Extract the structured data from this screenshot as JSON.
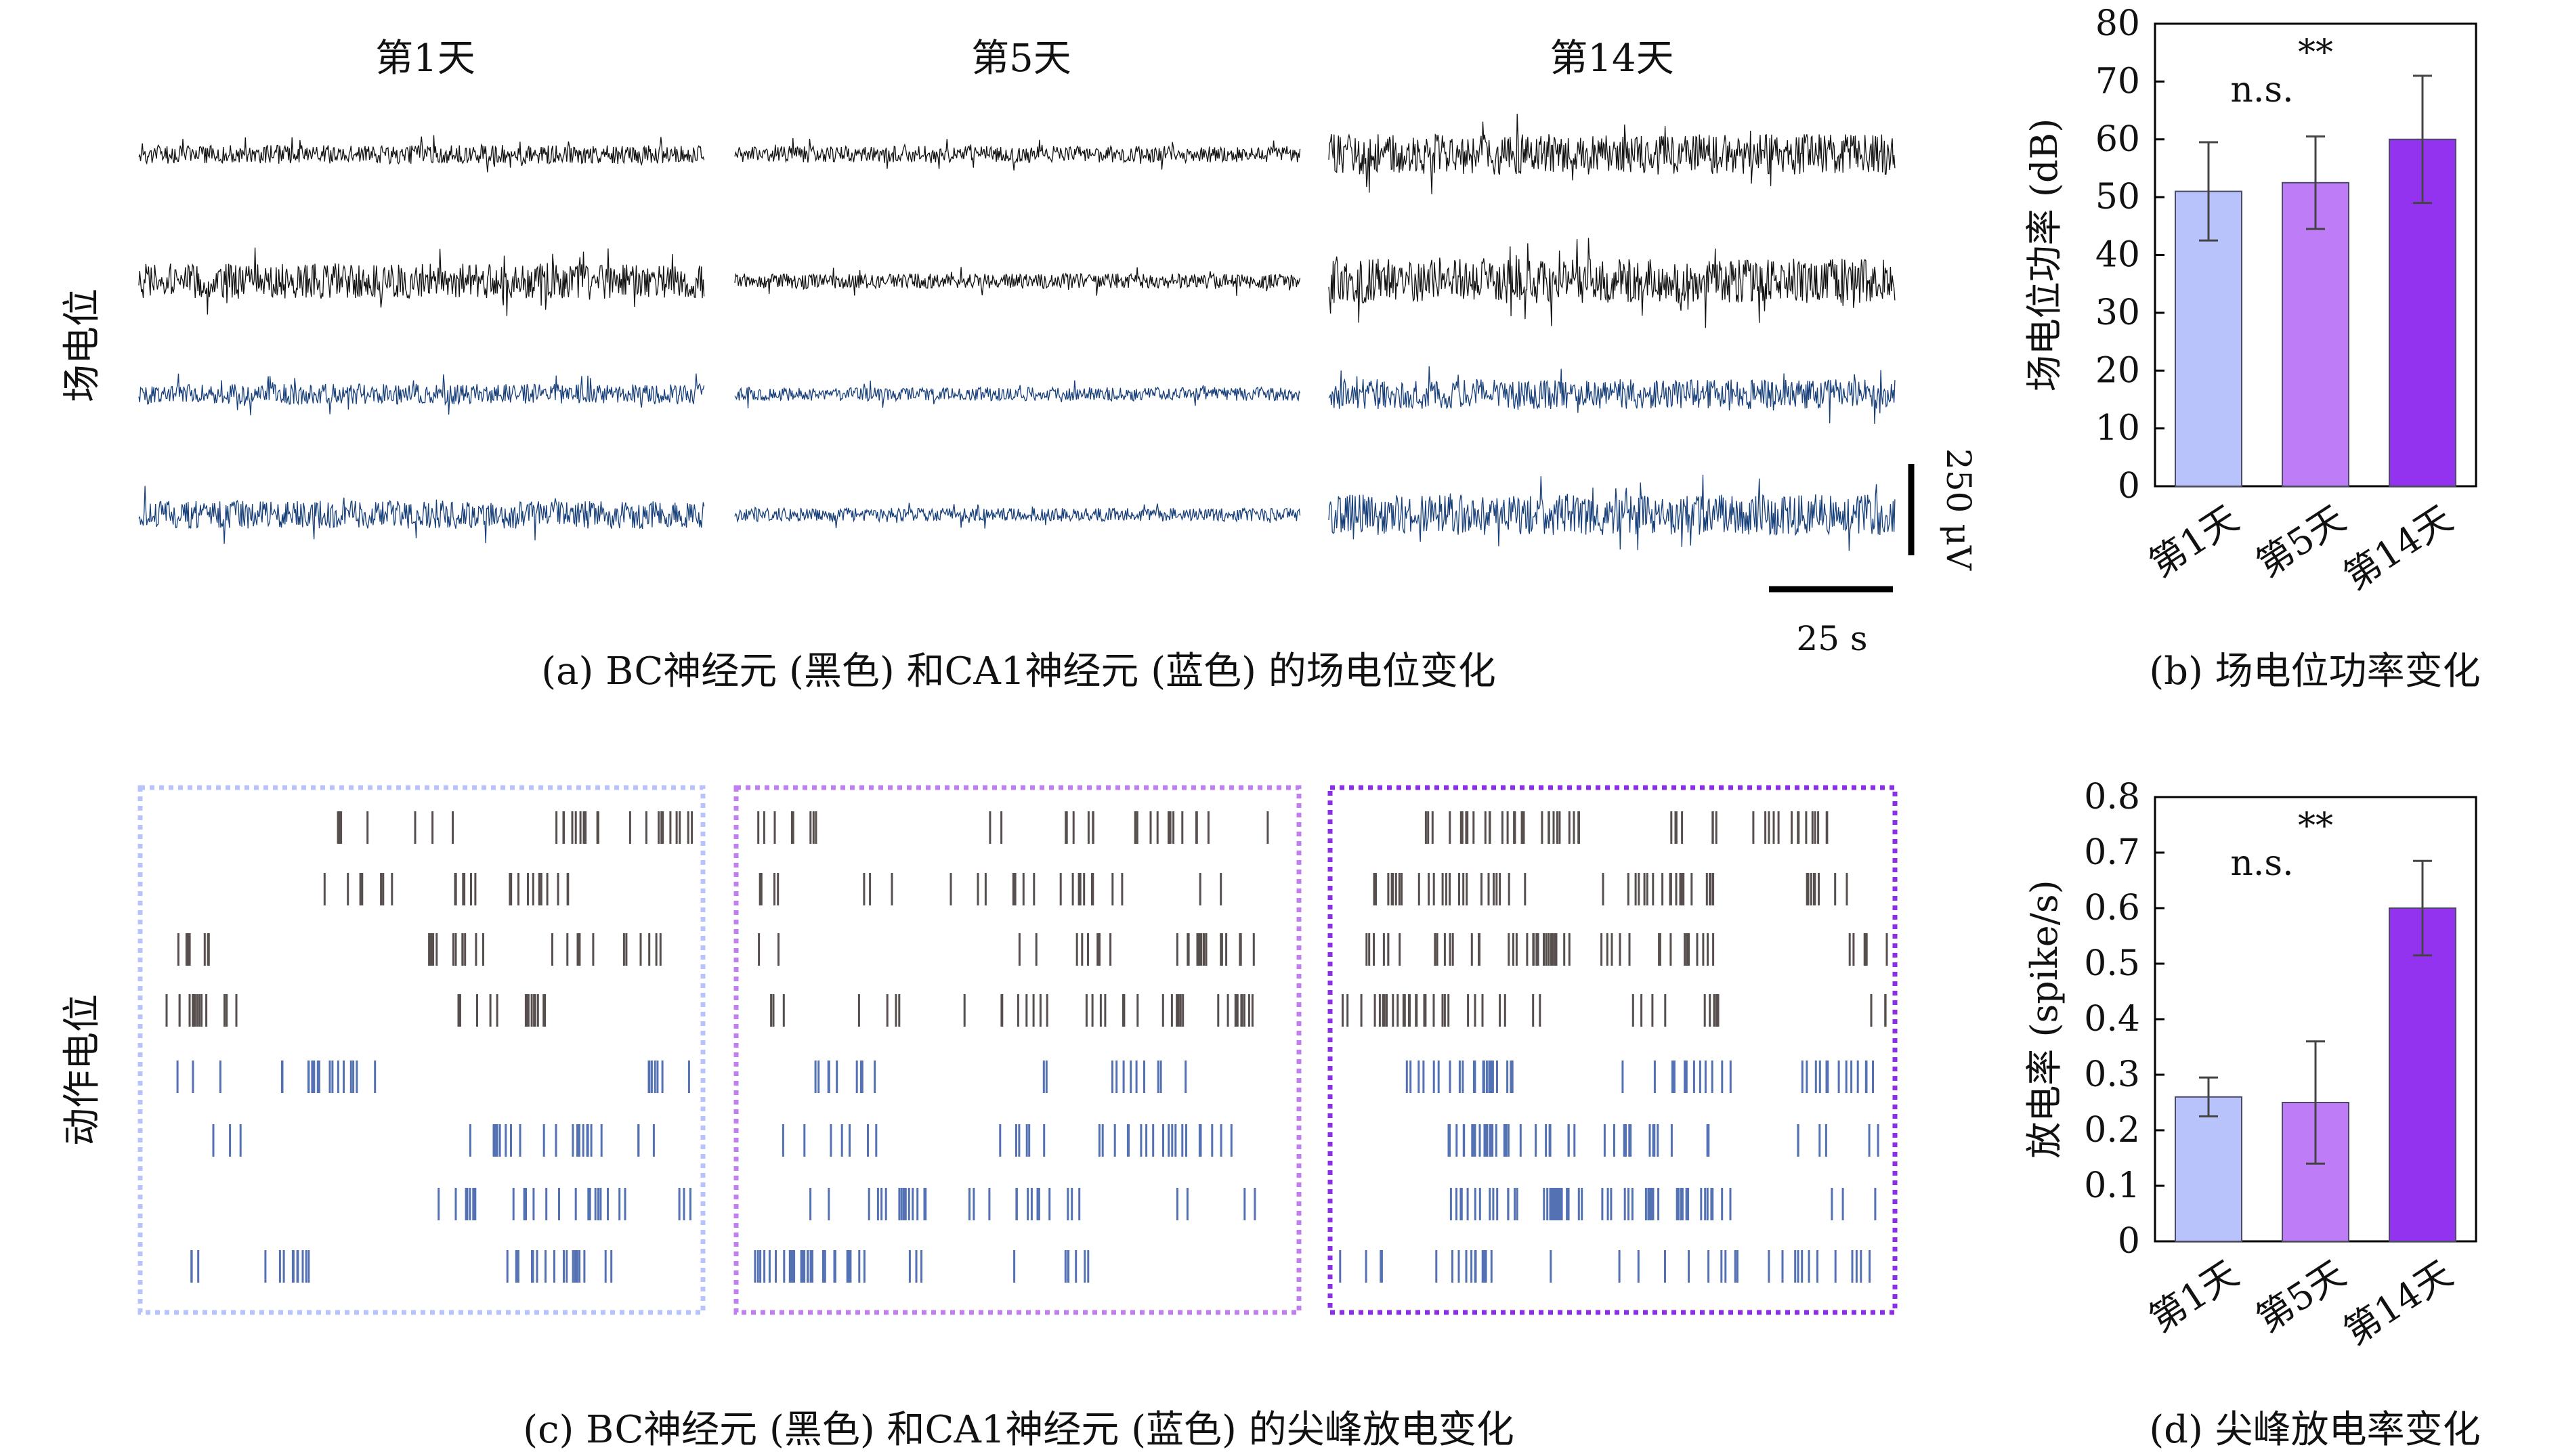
{
  "colors": {
    "bc_trace": "#111111",
    "ca1_trace": "#173f7a",
    "raster_bc": "#3a2f2f",
    "raster_ca1": "#3558a6",
    "day1": "#b9c3fb",
    "day5": "#bf7cf7",
    "day14": "#9333f0",
    "day1_box": "#b9c3fb",
    "day5_box": "#c07ff0",
    "day14_box": "#8a2ee8"
  },
  "panel_a": {
    "column_headers": [
      "第1天",
      "第5天",
      "第14天"
    ],
    "row_label": "场电位",
    "scale_y_label": "250 μV",
    "scale_x_label": "25 s",
    "caption": "(a) BC神经元 (黑色) 和CA1神经元 (蓝色) 的场电位变化"
  },
  "panel_c": {
    "row_label": "动作电位",
    "caption": "(c) BC神经元 (黑色) 和CA1神经元 (蓝色) 的尖峰放电变化"
  },
  "chart_data": [
    {
      "type": "bar",
      "caption": "(b) 场电位功率变化",
      "categories": [
        "第1天",
        "第5天",
        "第14天"
      ],
      "values": [
        51,
        52.5,
        60
      ],
      "errors": [
        8.5,
        8,
        11
      ],
      "ylabel": "场电位功率 (dB)",
      "ylim": [
        0,
        80
      ],
      "yticks": [
        0,
        10,
        20,
        30,
        40,
        50,
        60,
        70,
        80
      ],
      "annotations": {
        "ns": "n.s.",
        "sig": "**"
      },
      "grid": false
    },
    {
      "type": "bar",
      "caption": "(d) 尖峰放电率变化",
      "categories": [
        "第1天",
        "第5天",
        "第14天"
      ],
      "values": [
        0.26,
        0.25,
        0.6
      ],
      "errors": [
        0.035,
        0.11,
        0.085
      ],
      "ylabel": "放电率 (spike/s)",
      "ylim": [
        0,
        0.8
      ],
      "yticks": [
        "0",
        "0.1",
        "0.2",
        "0.3",
        "0.4",
        "0.5",
        "0.6",
        "0.7",
        "0.8"
      ],
      "annotations": {
        "ns": "n.s.",
        "sig": "**"
      },
      "grid": false
    }
  ]
}
